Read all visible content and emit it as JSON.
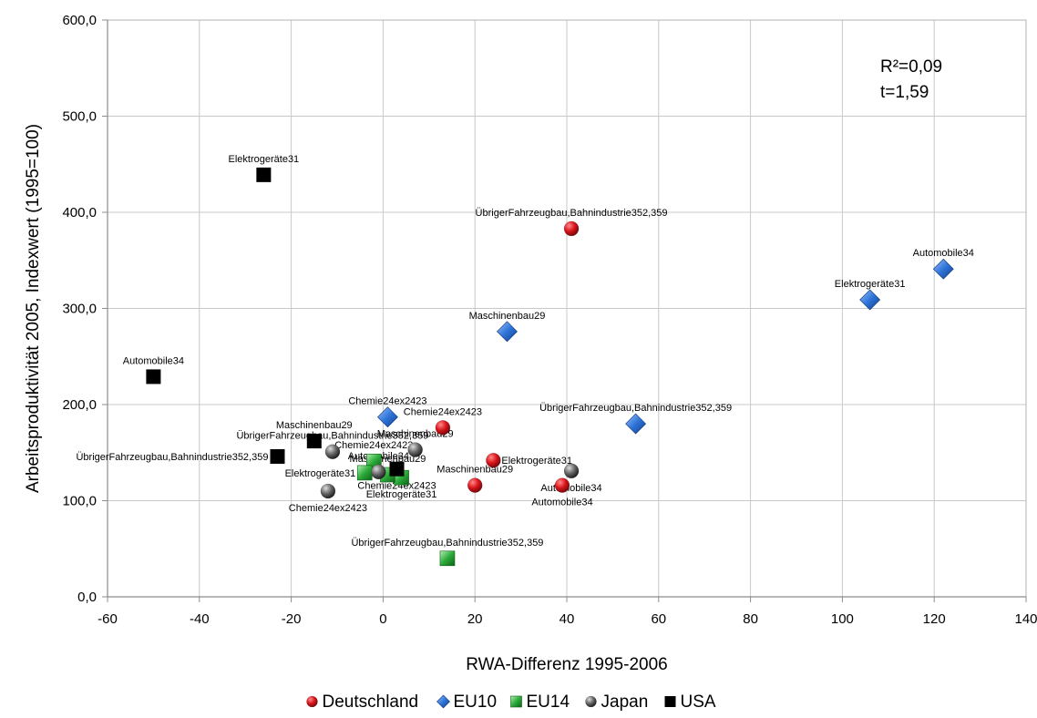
{
  "chart_data": {
    "type": "scatter",
    "xlabel": "RWA-Differenz 1995-2006",
    "ylabel": "Arbeitsproduktivität 2005, Indexwert (1995=100)",
    "xlim": [
      -60,
      140
    ],
    "ylim": [
      0,
      600
    ],
    "x_ticks": [
      "-60",
      "-40",
      "-20",
      "0",
      "20",
      "40",
      "60",
      "80",
      "100",
      "120",
      "140"
    ],
    "y_ticks": [
      "0,0",
      "100,0",
      "200,0",
      "300,0",
      "400,0",
      "500,0",
      "600,0"
    ],
    "grid": true,
    "legend_position": "bottom",
    "stats": [
      "R²=0,09",
      "t=1,59"
    ],
    "series": [
      {
        "name": "Deutschland",
        "marker": "sphere",
        "color": "#d9141b",
        "points": [
          {
            "x": 41,
            "y": 383,
            "label": "ÜbrigerFahrzeugbau,Bahnindustrie352,359",
            "anchor": "above"
          },
          {
            "x": 13,
            "y": 176,
            "label": "Chemie24ex2423",
            "anchor": "above"
          },
          {
            "x": 24,
            "y": 142,
            "label": "Elektrogeräte31",
            "anchor": "right"
          },
          {
            "x": 20,
            "y": 116,
            "label": "Maschinenbau29",
            "anchor": "above"
          },
          {
            "x": 39,
            "y": 116,
            "label": "Automobile34",
            "anchor": "below"
          }
        ]
      },
      {
        "name": "EU10",
        "marker": "diamond",
        "color": "#1f5fbf",
        "points": [
          {
            "x": 122,
            "y": 341,
            "label": "Automobile34",
            "anchor": "above"
          },
          {
            "x": 106,
            "y": 309,
            "label": "Elektrogeräte31",
            "anchor": "above"
          },
          {
            "x": 27,
            "y": 276,
            "label": "Maschinenbau29",
            "anchor": "above"
          },
          {
            "x": 55,
            "y": 180,
            "label": "ÜbrigerFahrzeugbau,Bahnindustrie352,359",
            "anchor": "above"
          },
          {
            "x": 1,
            "y": 187,
            "label": "Chemie24ex2423",
            "anchor": "above"
          }
        ]
      },
      {
        "name": "EU14",
        "marker": "square",
        "color": "#2bab3a",
        "points": [
          {
            "x": 14,
            "y": 40,
            "label": "ÜbrigerFahrzeugbau,Bahnindustrie352,359",
            "anchor": "above"
          },
          {
            "x": 4,
            "y": 124,
            "label": "Elektrogeräte31",
            "anchor": "below"
          },
          {
            "x": -2,
            "y": 141,
            "label": "Chemie24ex2423",
            "anchor": "above"
          },
          {
            "x": -4,
            "y": 129,
            "label": "Elektrogeräte31",
            "anchor": "left"
          },
          {
            "x": 1,
            "y": 127,
            "label": "Maschinenbau29",
            "anchor": "above"
          }
        ]
      },
      {
        "name": "Japan",
        "marker": "sphere",
        "color": "#555555",
        "points": [
          {
            "x": 7,
            "y": 153,
            "label": "Maschinenbau29",
            "anchor": "above"
          },
          {
            "x": -11,
            "y": 151,
            "label": "ÜbrigerFahrzeugbau,Bahnindustrie352,359",
            "anchor": "above"
          },
          {
            "x": -12,
            "y": 110,
            "label": "Chemie24ex2423",
            "anchor": "below"
          },
          {
            "x": -1,
            "y": 130,
            "label": "Automobile34",
            "anchor": "above"
          },
          {
            "x": 41,
            "y": 131,
            "label": "Automobile34",
            "anchor": "below"
          }
        ]
      },
      {
        "name": "USA",
        "marker": "square",
        "color": "#000000",
        "points": [
          {
            "x": -26,
            "y": 439,
            "label": "Elektrogeräte31",
            "anchor": "above"
          },
          {
            "x": -50,
            "y": 229,
            "label": "Automobile34",
            "anchor": "above"
          },
          {
            "x": -15,
            "y": 162,
            "label": "Maschinenbau29",
            "anchor": "above"
          },
          {
            "x": -23,
            "y": 146,
            "label": "ÜbrigerFahrzeugbau,Bahnindustrie352,359",
            "anchor": "left"
          },
          {
            "x": 3,
            "y": 133,
            "label": "Chemie24ex2423",
            "anchor": "below"
          }
        ]
      }
    ]
  }
}
